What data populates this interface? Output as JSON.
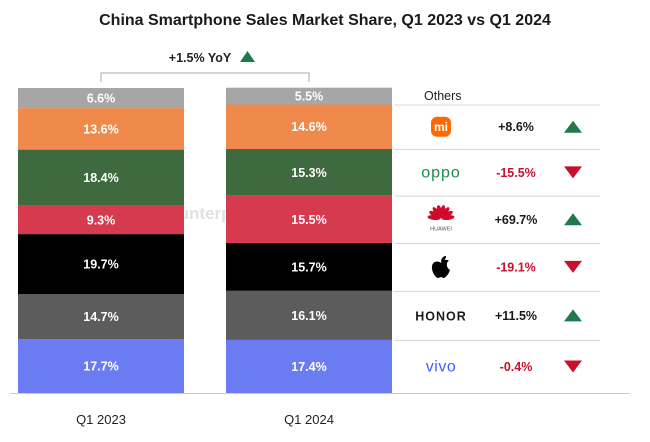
{
  "chart_data": {
    "type": "bar",
    "title": "China Smartphone Sales Market Share, Q1 2023 vs Q1 2024",
    "categories": [
      "Q1 2023",
      "Q1 2024"
    ],
    "stacked": true,
    "ylim": [
      0,
      100
    ],
    "series": [
      {
        "id": "vivo",
        "values": [
          17.7,
          17.4
        ],
        "color": "#6b7cf2",
        "change": "-0.4%",
        "trend": "down",
        "logo_text": "vivo"
      },
      {
        "id": "honor",
        "values": [
          14.7,
          16.1
        ],
        "color": "#5c5c5c",
        "change": "+11.5%",
        "trend": "up",
        "logo_text": "HONOR"
      },
      {
        "id": "apple",
        "values": [
          19.7,
          15.7
        ],
        "color": "#000000",
        "change": "-19.1%",
        "trend": "down",
        "logo_text": ""
      },
      {
        "id": "huawei",
        "values": [
          9.3,
          15.5
        ],
        "color": "#d63a4f",
        "change": "+69.7%",
        "trend": "up",
        "logo_text": "HUAWEI"
      },
      {
        "id": "oppo",
        "values": [
          18.4,
          15.3
        ],
        "color": "#3f6a3f",
        "change": "-15.5%",
        "trend": "down",
        "logo_text": "oppo"
      },
      {
        "id": "xiaomi",
        "values": [
          13.6,
          14.6
        ],
        "color": "#ef8a4c",
        "change": "+8.6%",
        "trend": "up",
        "logo_text": "mi"
      },
      {
        "name": "Others",
        "values": [
          6.6,
          5.5
        ],
        "color": "#a6a6a6"
      }
    ],
    "value_labels": [
      [
        "17.7%",
        "17.4%"
      ],
      [
        "14.7%",
        "16.1%"
      ],
      [
        "19.7%",
        "15.7%"
      ],
      [
        "9.3%",
        "15.5%"
      ],
      [
        "18.4%",
        "15.3%"
      ],
      [
        "13.6%",
        "14.6%"
      ],
      [
        "6.6%",
        "5.5%"
      ]
    ],
    "total_change": "+1.5% YoY",
    "total_trend": "up",
    "legend_position": "right",
    "grid": false
  },
  "watermark": "Counterpoint",
  "colors": {
    "up": "#1e7a4d",
    "down": "#c8102e",
    "mi_logo": "#ff6900",
    "oppo_logo": "#1f8a4c",
    "huawei_logo": "#cf0a2c",
    "vivo_logo": "#415fff",
    "axis": "#cccccc"
  }
}
